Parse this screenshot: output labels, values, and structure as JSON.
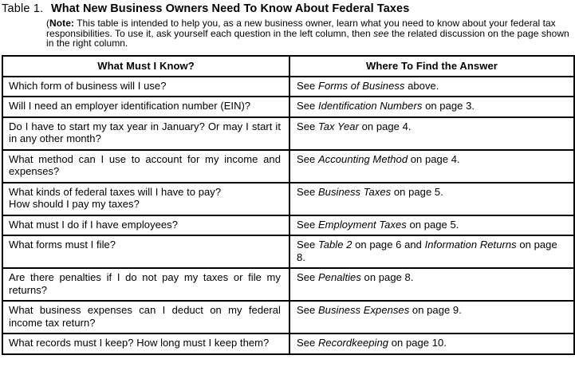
{
  "caption": {
    "label": "Table 1.",
    "title": "What New Business Owners Need To Know About Federal Taxes"
  },
  "note": {
    "pre": "(",
    "bold_label": "Note:",
    "part1": " This table is intended to help you, as a new business owner, learn what you need to know about your federal tax responsibilities. To use it, ask yourself each question in the left column, then ",
    "see_word": "see",
    "part2": " the related discussion on the page shown in the right column."
  },
  "table": {
    "headers": [
      "What Must I Know?",
      "Where To Find the Answer"
    ],
    "rows": [
      {
        "question": "Which form of business will I use?",
        "answer": [
          {
            "text": "See "
          },
          {
            "text": "Forms of Business",
            "italic": true
          },
          {
            "text": " above."
          }
        ]
      },
      {
        "question": "Will I need an employer identification number (EIN)?",
        "answer": [
          {
            "text": "See "
          },
          {
            "text": "Identification Numbers",
            "italic": true
          },
          {
            "text": " on page 3."
          }
        ]
      },
      {
        "question": "Do I have to start my tax year in January? Or may I start it in any other month?",
        "answer": [
          {
            "text": "See "
          },
          {
            "text": "Tax Year",
            "italic": true
          },
          {
            "text": " on page 4."
          }
        ]
      },
      {
        "question": "What method can I use to account for my income and expenses?",
        "answer": [
          {
            "text": "See "
          },
          {
            "text": "Accounting Method",
            "italic": true
          },
          {
            "text": " on page 4."
          }
        ]
      },
      {
        "question": "What kinds of federal taxes will I have to pay?\nHow should I pay my taxes?",
        "answer": [
          {
            "text": "See "
          },
          {
            "text": "Business Taxes",
            "italic": true
          },
          {
            "text": " on page 5."
          }
        ]
      },
      {
        "question": "What must I do if I have employees?",
        "answer": [
          {
            "text": "See "
          },
          {
            "text": "Employment Taxes",
            "italic": true
          },
          {
            "text": " on page 5."
          }
        ]
      },
      {
        "question": "What forms must I file?",
        "answer": [
          {
            "text": "See "
          },
          {
            "text": "Table 2",
            "italic": true
          },
          {
            "text": " on page 6 and "
          },
          {
            "text": "Information Returns",
            "italic": true
          },
          {
            "text": " on page 8."
          }
        ]
      },
      {
        "question": "Are there penalties if I do not pay my taxes or file my returns?",
        "answer": [
          {
            "text": "See "
          },
          {
            "text": "Penalties",
            "italic": true
          },
          {
            "text": " on page 8."
          }
        ]
      },
      {
        "question": "What business expenses can I deduct on my federal income tax return?",
        "answer": [
          {
            "text": "See "
          },
          {
            "text": "Business Expenses",
            "italic": true
          },
          {
            "text": " on page 9."
          }
        ]
      },
      {
        "question": "What records must I keep? How long must I keep them?",
        "answer": [
          {
            "text": "See "
          },
          {
            "text": "Recordkeeping",
            "italic": true
          },
          {
            "text": " on page 10."
          }
        ]
      }
    ]
  },
  "colors": {
    "text": "#000000",
    "background": "#ffffff",
    "border": "#000000"
  }
}
